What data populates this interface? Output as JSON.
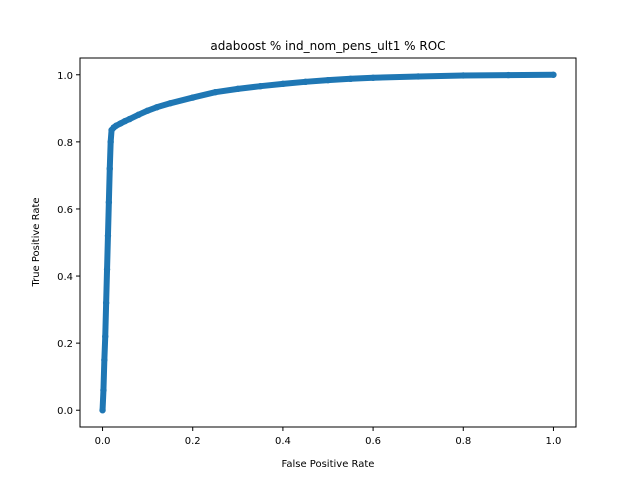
{
  "chart_data": {
    "type": "line",
    "title": "adaboost % ind_nom_pens_ult1 % ROC",
    "xlabel": "False Positive Rate",
    "ylabel": "True Positive Rate",
    "xlim": [
      -0.05,
      1.05
    ],
    "ylim": [
      -0.05,
      1.05
    ],
    "xticks": [
      0.0,
      0.2,
      0.4,
      0.6,
      0.8,
      1.0
    ],
    "xtick_labels": [
      "0.0",
      "0.2",
      "0.4",
      "0.6",
      "0.8",
      "1.0"
    ],
    "yticks": [
      0.0,
      0.2,
      0.4,
      0.6,
      0.8,
      1.0
    ],
    "ytick_labels": [
      "0.0",
      "0.2",
      "0.4",
      "0.6",
      "0.8",
      "1.0"
    ],
    "grid": false,
    "series": [
      {
        "color": "#1f77b4",
        "marker": "dot",
        "x": [
          0.0,
          0.002,
          0.004,
          0.006,
          0.008,
          0.01,
          0.012,
          0.014,
          0.016,
          0.018,
          0.02,
          0.025,
          0.03,
          0.04,
          0.05,
          0.06,
          0.08,
          0.1,
          0.12,
          0.15,
          0.2,
          0.25,
          0.3,
          0.35,
          0.4,
          0.45,
          0.5,
          0.55,
          0.6,
          0.7,
          0.8,
          0.9,
          1.0
        ],
        "y": [
          0.0,
          0.06,
          0.15,
          0.22,
          0.32,
          0.42,
          0.52,
          0.62,
          0.72,
          0.8,
          0.835,
          0.843,
          0.848,
          0.855,
          0.862,
          0.868,
          0.881,
          0.893,
          0.903,
          0.915,
          0.932,
          0.948,
          0.958,
          0.966,
          0.973,
          0.979,
          0.984,
          0.988,
          0.991,
          0.995,
          0.998,
          0.999,
          1.0
        ]
      }
    ]
  }
}
